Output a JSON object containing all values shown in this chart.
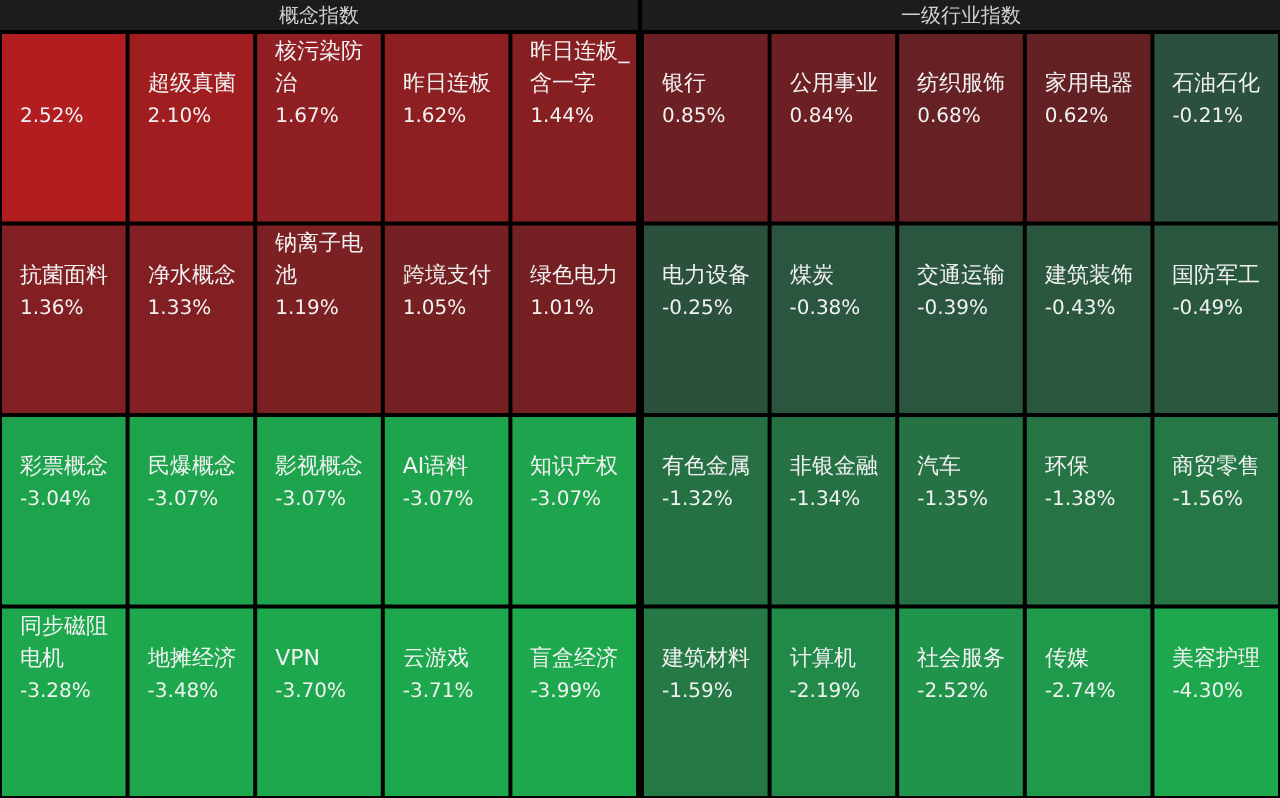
{
  "chart_data": [
    {
      "type": "other",
      "title": "概念指数",
      "categories": [
        null,
        "超级真菌",
        "核污染防治",
        "昨日连板",
        "昨日连板_含一字",
        "抗菌面料",
        "净水概念",
        "钠离子电池",
        "跨境支付",
        "绿色电力",
        "彩票概念",
        "民爆概念",
        "影视概念",
        "AI语料",
        "知识产权",
        "同步磁阻电机",
        "地摊经济",
        "VPN",
        "云游戏",
        "盲盒经济"
      ],
      "values": [
        2.52,
        2.1,
        1.67,
        1.62,
        1.44,
        1.36,
        1.33,
        1.19,
        1.05,
        1.01,
        -3.04,
        -3.07,
        -3.07,
        -3.07,
        -3.07,
        -3.28,
        -3.48,
        -3.7,
        -3.71,
        -3.99
      ],
      "value_labels": [
        "2.52%",
        "2.10%",
        "1.67%",
        "1.62%",
        "1.44%",
        "1.36%",
        "1.33%",
        "1.19%",
        "1.05%",
        "1.01%",
        "-3.04%",
        "-3.07%",
        "-3.07%",
        "-3.07%",
        "-3.07%",
        "-3.28%",
        "-3.48%",
        "-3.70%",
        "-3.71%",
        "-3.99%"
      ]
    },
    {
      "type": "other",
      "title": "一级行业指数",
      "categories": [
        "银行",
        "公用事业",
        "纺织服饰",
        "家用电器",
        "石油石化",
        "电力设备",
        "煤炭",
        "交通运输",
        "建筑装饰",
        "国防军工",
        "有色金属",
        "非银金融",
        "汽车",
        "环保",
        "商贸零售",
        "建筑材料",
        "计算机",
        "社会服务",
        "传媒",
        "美容护理"
      ],
      "values": [
        0.85,
        0.84,
        0.68,
        0.62,
        -0.21,
        -0.25,
        -0.38,
        -0.39,
        -0.43,
        -0.49,
        -1.32,
        -1.34,
        -1.35,
        -1.38,
        -1.56,
        -1.59,
        -2.19,
        -2.52,
        -2.74,
        -4.3
      ],
      "value_labels": [
        "0.85%",
        "0.84%",
        "0.68%",
        "0.62%",
        "-0.21%",
        "-0.25%",
        "-0.38%",
        "-0.39%",
        "-0.43%",
        "-0.49%",
        "-1.32%",
        "-1.34%",
        "-1.35%",
        "-1.38%",
        "-1.56%",
        "-1.59%",
        "-2.19%",
        "-2.52%",
        "-2.74%",
        "-4.30%"
      ]
    }
  ]
}
